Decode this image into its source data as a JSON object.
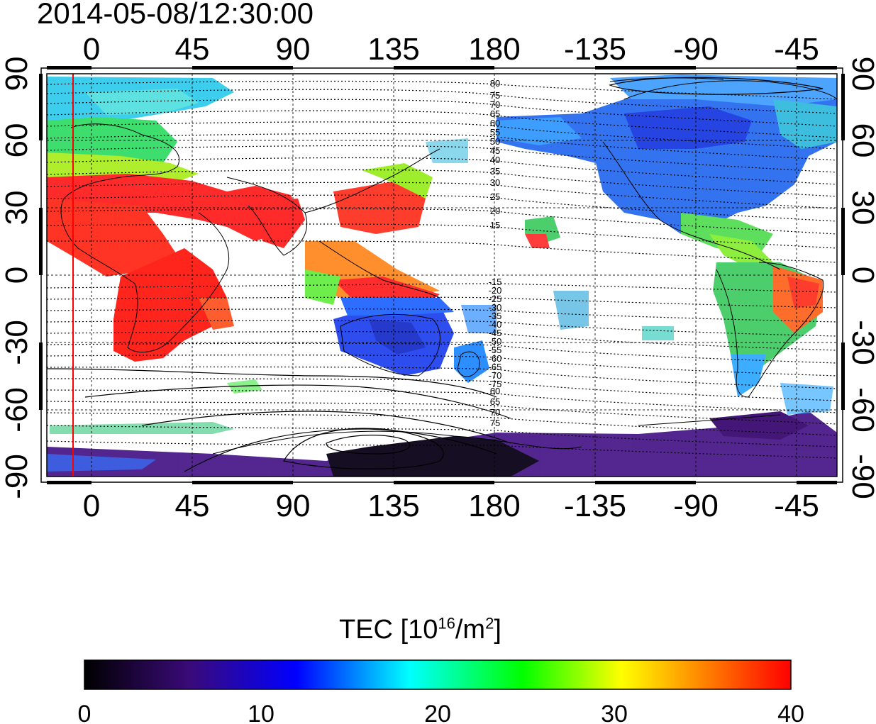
{
  "title": "2014-05-08/12:30:00",
  "map": {
    "lon_ticks": [
      "0",
      "45",
      "90",
      "135",
      "180",
      "-135",
      "-90",
      "-45"
    ],
    "lat_ticks": [
      "90",
      "60",
      "30",
      "0",
      "-30",
      "-60",
      "-90"
    ],
    "contour_labels_north": [
      "80",
      "75",
      "70",
      "65",
      "60",
      "55",
      "50",
      "45",
      "40",
      "35",
      "30",
      "25",
      "20",
      "15"
    ],
    "contour_labels_south": [
      "-15",
      "-20",
      "-25",
      "-30",
      "-35",
      "-40",
      "-45",
      "-50",
      "-55",
      "-60",
      "-65",
      "-70",
      "-75"
    ],
    "contour_labels_far_south": [
      "60",
      "65",
      "70",
      "75"
    ],
    "terminator_color": "#ff0000",
    "missing_color": "#ffffff"
  },
  "colorbar": {
    "title_prefix": "TEC  [10",
    "title_exp1": "16",
    "title_mid": "/m",
    "title_exp2": "2",
    "title_suffix": "]",
    "ticks": [
      "0",
      "10",
      "20",
      "30",
      "40"
    ],
    "min": 0,
    "max": 40,
    "stops": [
      "#000000",
      "#3a0a7a",
      "#0000ff",
      "#00ffff",
      "#00ff00",
      "#ffff00",
      "#ff0000"
    ]
  }
}
